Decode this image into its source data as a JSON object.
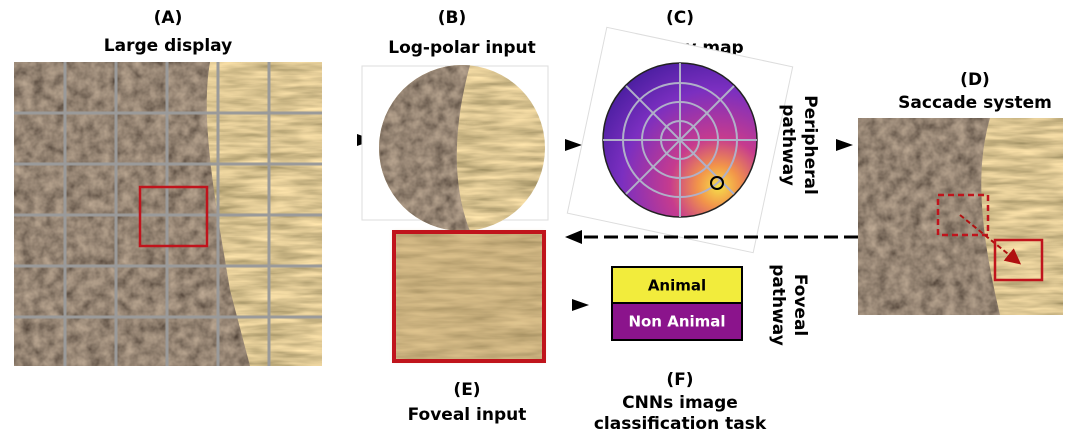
{
  "panels": [
    {
      "label": "(A)",
      "title": "Large display"
    },
    {
      "label": "(B)",
      "title": "Log-polar input"
    },
    {
      "label": "(C)",
      "title": "Saliency map"
    },
    {
      "label": "(D)",
      "title": "Saccade system"
    },
    {
      "label": "(E)",
      "title": "Foveal input"
    },
    {
      "label": "(F)",
      "title_lines": [
        "CNNs image",
        "classification task"
      ]
    }
  ],
  "classes": [
    "Animal",
    "Non Animal"
  ],
  "pathways": {
    "peripheral": [
      "Peripheral",
      "pathway"
    ],
    "foveal": [
      "Foveal",
      "pathway"
    ]
  }
}
